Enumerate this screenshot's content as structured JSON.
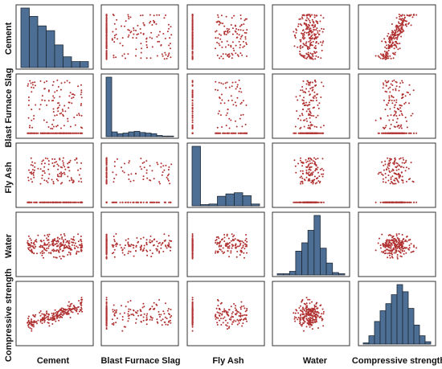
{
  "chart_data": {
    "type": "scatter-matrix",
    "title": "",
    "variables": [
      "Cement",
      "Blast Furnace Slag",
      "Fly Ash",
      "Water",
      "Compressive strength"
    ],
    "diagonal": "histogram",
    "grid": false,
    "legend": "none",
    "colors": {
      "histogram_fill": "#4d6f96",
      "histogram_edge": "#1c2733",
      "point": "#b03030",
      "frame": "#333333"
    },
    "histograms": [
      {
        "variable": "Cement",
        "counts": [
          100,
          86,
          70,
          62,
          38,
          18,
          10,
          10
        ]
      },
      {
        "variable": "Blast Furnace Slag",
        "counts": [
          100,
          8,
          5,
          6,
          8,
          9,
          7,
          6,
          5,
          2,
          1,
          1
        ]
      },
      {
        "variable": "Fly Ash",
        "counts": [
          100,
          2,
          3,
          16,
          20,
          22,
          17,
          3
        ]
      },
      {
        "variable": "Water",
        "counts": [
          2,
          2,
          6,
          40,
          54,
          75,
          100,
          45,
          20,
          4,
          2
        ]
      },
      {
        "variable": "Compressive strength",
        "counts": [
          2,
          14,
          38,
          56,
          68,
          83,
          100,
          88,
          60,
          32,
          14,
          4
        ]
      }
    ]
  }
}
